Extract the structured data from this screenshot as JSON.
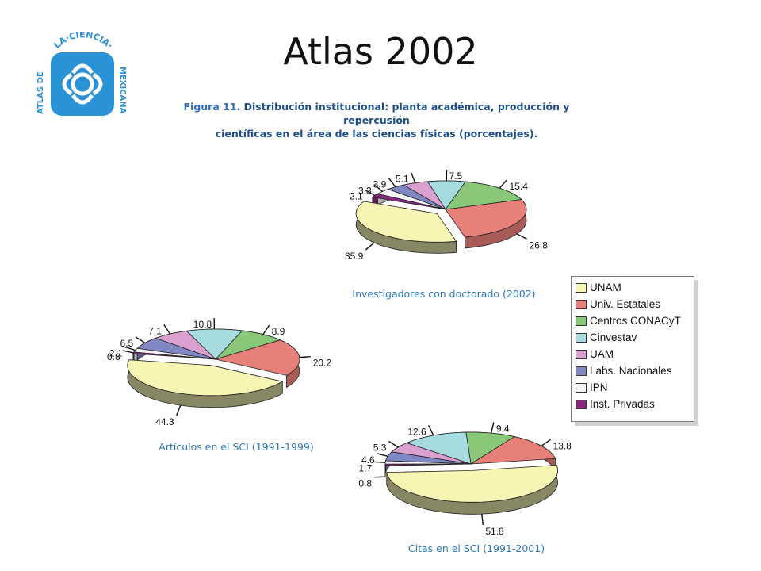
{
  "slide": {
    "title": "Atlas 2002"
  },
  "logo": {
    "text_top": "LA·CIENCIA·",
    "text_left": "ATLAS DE",
    "text_right": "MEXICANA"
  },
  "figure": {
    "number": "Figura 11.",
    "caption_line1": "Distribución institucional: planta académica, producción y repercusión",
    "caption_line2": "científicas en el área de las ciencias físicas (porcentajes)."
  },
  "legend": {
    "items": [
      {
        "label": "UNAM",
        "color": "#f7f5b4"
      },
      {
        "label": "Univ. Estatales",
        "color": "#e8807a"
      },
      {
        "label": "Centros CONACyT",
        "color": "#88c878"
      },
      {
        "label": "Cinvestav",
        "color": "#a6dbe0"
      },
      {
        "label": "UAM",
        "color": "#d9a0d0"
      },
      {
        "label": "Labs. Nacionales",
        "color": "#8088c4"
      },
      {
        "label": "IPN",
        "color": "#f4f4f6"
      },
      {
        "label": "Inst. Privadas",
        "color": "#8a2680"
      }
    ]
  },
  "chart_data": [
    {
      "type": "pie",
      "title": "Investigadores con doctorado (2002)",
      "categories": [
        "UNAM",
        "Univ. Estatales",
        "Centros CONACyT",
        "Cinvestav",
        "UAM",
        "Labs. Nacionales",
        "IPN",
        "Inst. Privadas"
      ],
      "values": [
        35.9,
        26.8,
        15.4,
        7.5,
        5.1,
        3.9,
        3.3,
        2.1
      ],
      "labels": [
        "35.9",
        "26.8",
        "15.4",
        "7.5",
        "5.1",
        "3.9",
        "3.3",
        "2.1"
      ]
    },
    {
      "type": "pie",
      "title": "Artículos en el SCI (1991-1999)",
      "categories": [
        "UNAM",
        "Univ. Estatales",
        "Centros CONACyT",
        "Cinvestav",
        "UAM",
        "Labs. Nacionales",
        "IPN",
        "Inst. Privadas"
      ],
      "values": [
        44.3,
        20.2,
        8.9,
        10.8,
        7.1,
        6.5,
        2.1,
        0.8
      ],
      "labels": [
        "44.3",
        "20.2",
        "8.9",
        "10.8",
        "7.1",
        "6.5",
        "2.1",
        "0.8"
      ]
    },
    {
      "type": "pie",
      "title": "Citas en el SCI (1991-2001)",
      "categories": [
        "UNAM",
        "Univ. Estatales",
        "Centros CONACyT",
        "Cinvestav",
        "UAM",
        "Labs. Nacionales",
        "IPN",
        "Inst. Privadas"
      ],
      "values": [
        51.8,
        13.8,
        9.4,
        12.6,
        5.3,
        4.6,
        1.7,
        0.8
      ],
      "labels": [
        "51.8",
        "13.8",
        "9.4",
        "12.6",
        "5.3",
        "4.6",
        "1.7",
        "0.8"
      ]
    }
  ]
}
